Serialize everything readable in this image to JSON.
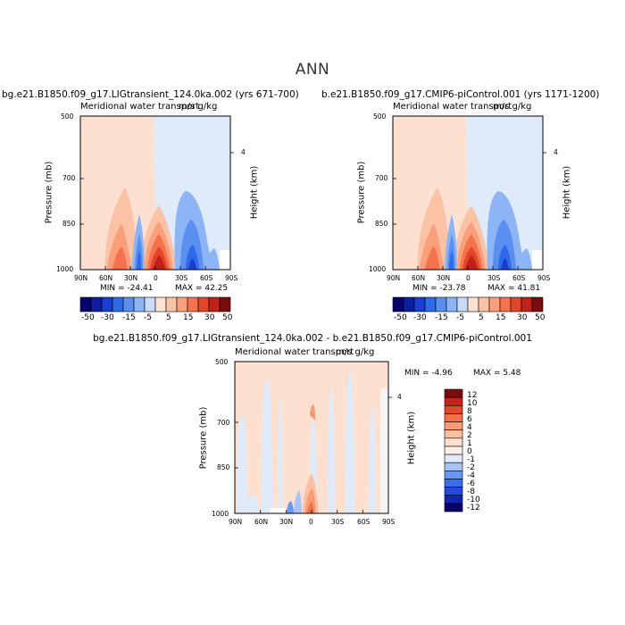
{
  "figure": {
    "suptitle": "ANN",
    "diff_title": "bg.e21.B1850.f09_g17.LIGtransient_124.0ka.002 - b.e21.B1850.f09_g17.CMIP6-piControl.001"
  },
  "colors": {
    "main_levels": [
      "#08006b",
      "#0c1fa0",
      "#1a3fd0",
      "#2f6ae8",
      "#5a8ff0",
      "#8db4f4",
      "#c8dcfa",
      "#fde2d2",
      "#fcc2a6",
      "#f99f7c",
      "#f4734c",
      "#e2452c",
      "#c0221b",
      "#7a0c0c"
    ],
    "diff_levels": [
      "#08006b",
      "#1224b0",
      "#2449dc",
      "#3a6ee8",
      "#6a97f0",
      "#a6c3f6",
      "#dfeafb",
      "#fdeee5",
      "#fde0d0",
      "#fcbf9f",
      "#f99a74",
      "#f37148",
      "#e14829",
      "#c3241c",
      "#7d0d0d"
    ],
    "background_warm": "#fde0d0",
    "background_cool": "#dfeafb"
  },
  "chart_data": [
    {
      "type": "heatmap",
      "id": "panel-lig",
      "title": "bg.e21.B1850.f09_g17.LIGtransient_124.0ka.002 (yrs 671-700)",
      "variable_title": "Meridional water transport",
      "units": "m/s g/kg",
      "xlabel": "",
      "ylabel": "Pressure (mb)",
      "right_label": "Height (km)",
      "right_ticks": [
        "4"
      ],
      "x_ticks": [
        "90N",
        "60N",
        "30N",
        "0",
        "30S",
        "60S",
        "90S"
      ],
      "y_ticks": [
        "500",
        "700",
        "850",
        "1000"
      ],
      "xlim": [
        90,
        -90
      ],
      "ylim": [
        1000,
        500
      ],
      "min_label": "MIN = -24.41",
      "max_label": "MAX = 42.25",
      "min": -24.41,
      "max": 42.25,
      "contour_levels": [
        -50,
        -30,
        -15,
        -5,
        5,
        15,
        30,
        50
      ],
      "colorbar_labels": [
        "-50",
        "-30",
        "-15",
        "-5",
        "5",
        "15",
        "30",
        "50"
      ],
      "features": [
        {
          "lat": 5,
          "p_top": 860,
          "value": 42
        },
        {
          "lat": 40,
          "p_top": 830,
          "value": 20
        },
        {
          "lat": 20,
          "p_top": 860,
          "value": -20
        },
        {
          "lat": -30,
          "p_top": 760,
          "value": -15
        },
        {
          "lat": -60,
          "p_top": 850,
          "value": -10
        }
      ]
    },
    {
      "type": "heatmap",
      "id": "panel-pi",
      "title": "b.e21.B1850.f09_g17.CMIP6-piControl.001 (yrs 1171-1200)",
      "variable_title": "Meridional water transport",
      "units": "m/s g/kg",
      "xlabel": "",
      "ylabel": "Pressure (mb)",
      "right_label": "Height (km)",
      "right_ticks": [
        "4"
      ],
      "x_ticks": [
        "90N",
        "60N",
        "30N",
        "0",
        "30S",
        "60S",
        "90S"
      ],
      "y_ticks": [
        "500",
        "700",
        "850",
        "1000"
      ],
      "xlim": [
        90,
        -90
      ],
      "ylim": [
        1000,
        500
      ],
      "min_label": "MIN = -23.78",
      "max_label": "MAX = 41.81",
      "min": -23.78,
      "max": 41.81,
      "contour_levels": [
        -50,
        -30,
        -15,
        -5,
        5,
        15,
        30,
        50
      ],
      "colorbar_labels": [
        "-50",
        "-30",
        "-15",
        "-5",
        "5",
        "15",
        "30",
        "50"
      ]
    },
    {
      "type": "heatmap",
      "id": "panel-diff",
      "title": "bg.e21.B1850.f09_g17.LIGtransient_124.0ka.002 - b.e21.B1850.f09_g17.CMIP6-piControl.001",
      "variable_title": "Meridional water transport",
      "units": "m/s g/kg",
      "ylabel": "Pressure (mb)",
      "right_label": "Height (km)",
      "right_ticks": [
        "4"
      ],
      "x_ticks": [
        "90N",
        "60N",
        "30N",
        "0",
        "30S",
        "60S",
        "90S"
      ],
      "y_ticks": [
        "500",
        "700",
        "850",
        "1000"
      ],
      "xlim": [
        90,
        -90
      ],
      "ylim": [
        1000,
        500
      ],
      "min_label": "MIN =  -4.96",
      "max_label": "MAX =   5.48",
      "min": -4.96,
      "max": 5.48,
      "contour_levels": [
        -12,
        -10,
        -8,
        -6,
        -4,
        -2,
        -1,
        0,
        1,
        2,
        4,
        6,
        8,
        10,
        12
      ],
      "colorbar_labels": [
        "12",
        "10",
        "8",
        "6",
        "4",
        "2",
        "1",
        "0",
        "-1",
        "-2",
        "-4",
        "-6",
        "-8",
        "-10",
        "-12"
      ]
    }
  ]
}
